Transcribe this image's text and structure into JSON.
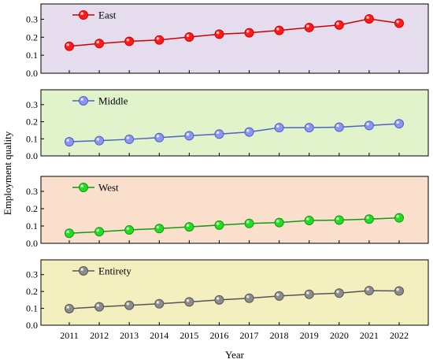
{
  "chart_data": {
    "type": "line",
    "xlabel": "Year",
    "ylabel": "Employment quality",
    "x": [
      "2011",
      "2012",
      "2013",
      "2014",
      "2015",
      "2016",
      "2017",
      "2018",
      "2019",
      "2020",
      "2021",
      "2022"
    ],
    "ylim": [
      0,
      0.35
    ],
    "yticks": [
      "0.0",
      "0.1",
      "0.2",
      "0.3"
    ],
    "grid": false,
    "legend_placement": "top-left inside each panel",
    "panels": [
      {
        "name": "East",
        "background": "#e5dded",
        "line_color": "#cc0000",
        "marker_color": "#ff1a1a",
        "values": [
          0.15,
          0.165,
          0.177,
          0.185,
          0.201,
          0.217,
          0.225,
          0.238,
          0.254,
          0.268,
          0.302,
          0.278
        ]
      },
      {
        "name": "Middle",
        "background": "#e0f3cb",
        "line_color": "#5060c8",
        "marker_color": "#8c96f2",
        "values": [
          0.083,
          0.089,
          0.097,
          0.107,
          0.118,
          0.128,
          0.14,
          0.165,
          0.165,
          0.168,
          0.178,
          0.188
        ]
      },
      {
        "name": "West",
        "background": "#fae0cc",
        "line_color": "#119911",
        "marker_color": "#22dd22",
        "values": [
          0.058,
          0.067,
          0.077,
          0.085,
          0.095,
          0.105,
          0.115,
          0.12,
          0.132,
          0.134,
          0.14,
          0.147
        ]
      },
      {
        "name": "Entirety",
        "background": "#f3efbf",
        "line_color": "#555555",
        "marker_color": "#8c8c8c",
        "values": [
          0.098,
          0.109,
          0.118,
          0.127,
          0.138,
          0.15,
          0.16,
          0.173,
          0.183,
          0.19,
          0.205,
          0.203
        ]
      }
    ]
  }
}
